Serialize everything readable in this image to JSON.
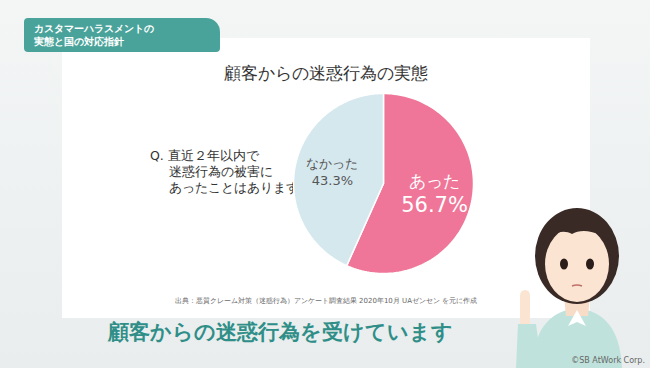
{
  "header": {
    "badge": [
      "カスタマーハラスメントの",
      "実態と国の対応指針"
    ]
  },
  "chart_data": {
    "type": "pie",
    "title": "顧客からの迷惑行為の実態",
    "question": [
      "Q. 直近２年以内で",
      "迷惑行為の被害に",
      "あったことはありますか"
    ],
    "categories": [
      "あった",
      "なかった"
    ],
    "values": [
      56.7,
      43.3
    ],
    "value_labels": [
      "56.7%",
      "43.3%"
    ],
    "colors": [
      "#ef7698",
      "#d5e8ee"
    ],
    "data_labels": true,
    "source": "出典：悪質クレーム対策（迷惑行為）アンケート調査結果 2020年10月 UAゼンセン を元に作成"
  },
  "caption": "顧客からの迷惑行為を受けています",
  "copyright": "©SB AtWork Corp."
}
